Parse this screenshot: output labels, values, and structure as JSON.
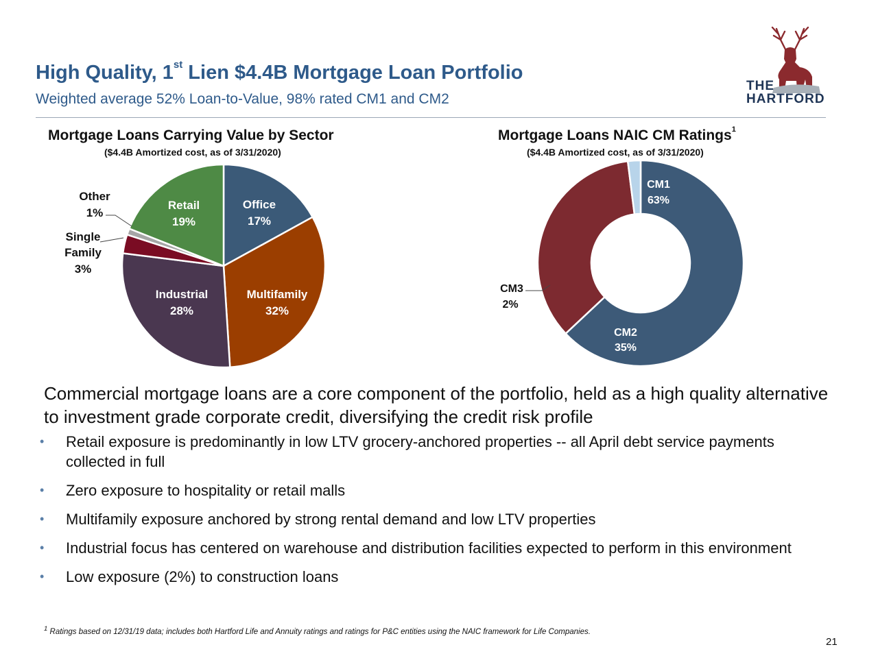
{
  "header": {
    "title_part1": "High Quality, 1",
    "title_sup": "st",
    "title_part2": " Lien $4.4B Mortgage Loan Portfolio",
    "subtitle": "Weighted average 52% Loan-to-Value, 98% rated CM1 and CM2"
  },
  "logo": {
    "line1": "THE",
    "line2": "HARTFORD",
    "icon": "stag-icon"
  },
  "colors": {
    "accent": "#2e5a8a",
    "office": "#3b5a78",
    "multifamily": "#9b3e00",
    "industrial": "#4a3750",
    "single_family": "#7a0c23",
    "other": "#a6a6a6",
    "retail": "#4e8a45",
    "cm1": "#3d5a78",
    "cm2": "#7d2a30",
    "cm3": "#b8d4ea"
  },
  "chart_data": [
    {
      "type": "pie",
      "title": "Mortgage Loans Carrying Value by Sector",
      "subtitle": "($4.4B Amortized cost, as of 3/31/2020)",
      "categories": [
        "Office",
        "Multifamily",
        "Industrial",
        "Single Family",
        "Other",
        "Retail"
      ],
      "values": [
        17,
        32,
        28,
        3,
        1,
        19
      ],
      "labels": [
        "17%",
        "32%",
        "28%",
        "3%",
        "1%",
        "19%"
      ]
    },
    {
      "type": "pie",
      "subtype": "donut",
      "title": "Mortgage Loans NAIC CM Ratings",
      "title_sup": "1",
      "subtitle": "($4.4B Amortized cost, as of 3/31/2020)",
      "categories": [
        "CM1",
        "CM2",
        "CM3"
      ],
      "values": [
        63,
        35,
        2
      ],
      "labels": [
        "63%",
        "35%",
        "2%"
      ]
    }
  ],
  "body": {
    "intro": "Commercial mortgage loans are a core component of the portfolio, held as a high quality alternative to investment grade corporate credit, diversifying the credit risk profile",
    "bullet_char": "•",
    "bullets": [
      "Retail exposure is predominantly in low LTV grocery-anchored properties -- all April debt service payments collected in full",
      "Zero exposure to hospitality or retail malls",
      "Multifamily exposure anchored by strong rental demand and low LTV properties",
      "Industrial focus has centered on warehouse and distribution facilities expected to perform in this environment",
      "Low exposure (2%) to construction loans"
    ]
  },
  "footnote": {
    "marker": "1",
    "text": " Ratings based on 12/31/19 data; includes both Hartford Life and Annuity ratings and ratings for P&C entities using the NAIC framework for Life Companies."
  },
  "page_number": "21"
}
